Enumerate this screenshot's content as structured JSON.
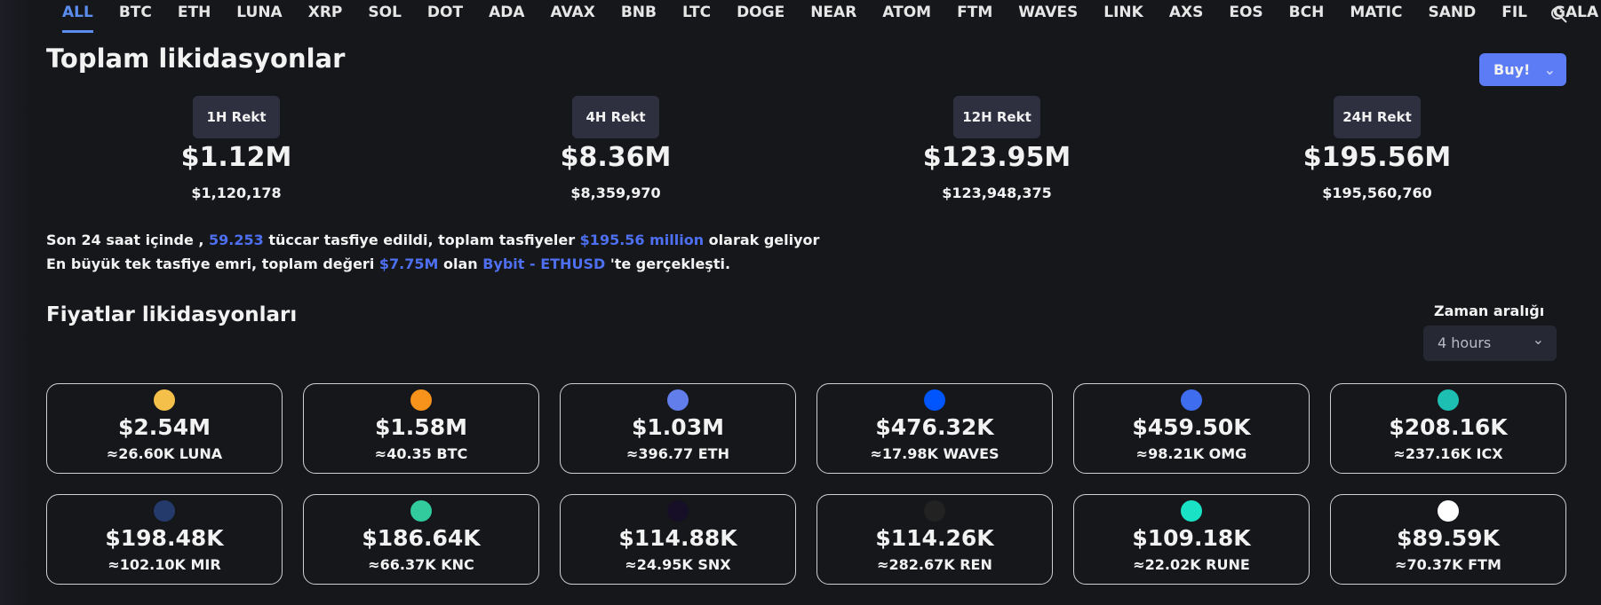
{
  "tabs": [
    "ALL",
    "BTC",
    "ETH",
    "LUNA",
    "XRP",
    "SOL",
    "DOT",
    "ADA",
    "AVAX",
    "BNB",
    "LTC",
    "DOGE",
    "NEAR",
    "ATOM",
    "FTM",
    "WAVES",
    "LINK",
    "AXS",
    "EOS",
    "BCH",
    "MATIC",
    "SAND",
    "FIL",
    "GALA"
  ],
  "header": {
    "title": "Toplam likidasyonlar",
    "buy": "Buy!"
  },
  "rekt": [
    {
      "label": "1H Rekt",
      "short": "$1.12M",
      "full": "$1,120,178"
    },
    {
      "label": "4H Rekt",
      "short": "$8.36M",
      "full": "$8,359,970"
    },
    {
      "label": "12H Rekt",
      "short": "$123.95M",
      "full": "$123,948,375"
    },
    {
      "label": "24H Rekt",
      "short": "$195.56M",
      "full": "$195,560,760"
    }
  ],
  "summary": [
    [
      "Son 24 saat içinde , ",
      "59.253",
      " tüccar tasfiye edildi, toplam tasfiyeler ",
      "$195.56 million",
      " olarak geliyor"
    ],
    [
      "En büyük tek tasfiye emri, toplam değeri ",
      "$7.75M",
      " olan ",
      "Bybit - ETHUSD",
      " 'te gerçekleşti."
    ]
  ],
  "section": {
    "title": "Fiyatlar likidasyonları",
    "range_label": "Zaman aralığı",
    "range_value": "4 hours"
  },
  "coins": [
    {
      "amount": "$2.54M",
      "qty": "≈26.60K LUNA"
    },
    {
      "amount": "$1.58M",
      "qty": "≈40.35 BTC"
    },
    {
      "amount": "$1.03M",
      "qty": "≈396.77 ETH"
    },
    {
      "amount": "$476.32K",
      "qty": "≈17.98K WAVES"
    },
    {
      "amount": "$459.50K",
      "qty": "≈98.21K OMG"
    },
    {
      "amount": "$208.16K",
      "qty": "≈237.16K ICX"
    },
    {
      "amount": "$198.48K",
      "qty": "≈102.10K MIR"
    },
    {
      "amount": "$186.64K",
      "qty": "≈66.37K KNC"
    },
    {
      "amount": "$114.88K",
      "qty": "≈24.95K SNX"
    },
    {
      "amount": "$114.26K",
      "qty": "≈282.67K REN"
    },
    {
      "amount": "$109.18K",
      "qty": "≈22.02K RUNE"
    },
    {
      "amount": "$89.59K",
      "qty": "≈70.37K FTM"
    }
  ]
}
